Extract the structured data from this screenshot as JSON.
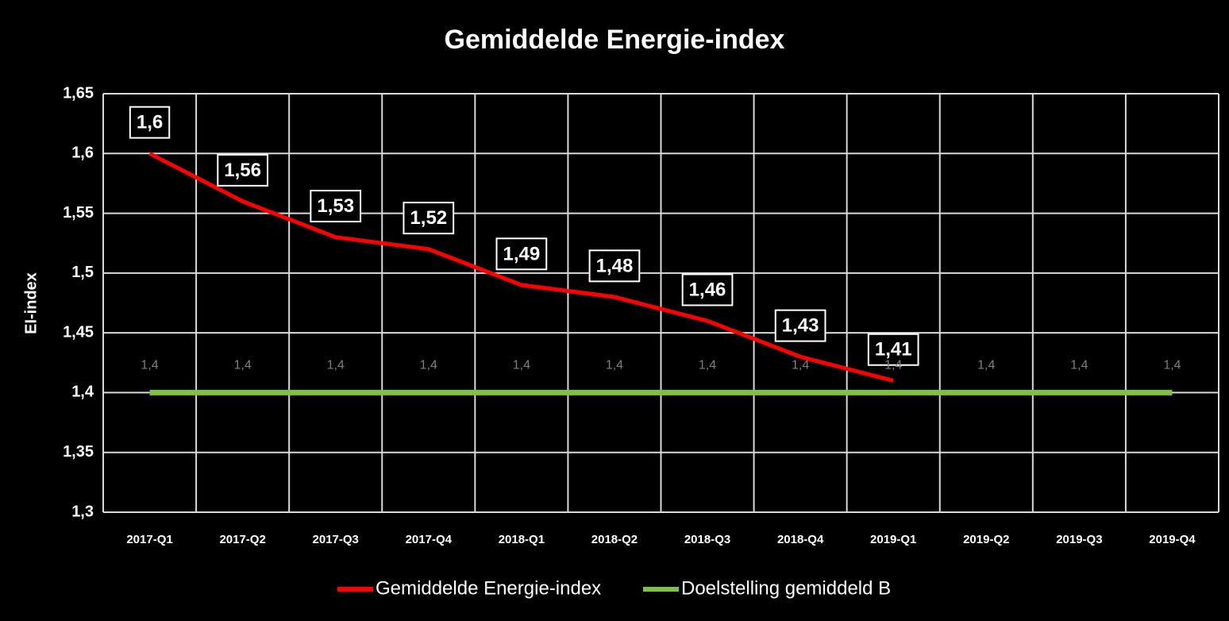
{
  "chart_data": {
    "type": "line",
    "title": "Gemiddelde Energie-index",
    "y_label": "EI-index",
    "categories": [
      "2017-Q1",
      "2017-Q2",
      "2017-Q3",
      "2017-Q4",
      "2018-Q1",
      "2018-Q2",
      "2018-Q3",
      "2018-Q4",
      "2019-Q1",
      "2019-Q2",
      "2019-Q3",
      "2019-Q4"
    ],
    "series": [
      {
        "name": "Gemiddelde Energie-index",
        "color": "#ff0000",
        "values": [
          1.6,
          1.56,
          1.53,
          1.52,
          1.49,
          1.48,
          1.46,
          1.43,
          1.41,
          null,
          null,
          null
        ],
        "value_labels": [
          "1,6",
          "1,56",
          "1,53",
          "1,52",
          "1,49",
          "1,48",
          "1,46",
          "1,43",
          "1,41",
          null,
          null,
          null
        ]
      },
      {
        "name": "Doelstelling gemiddeld B",
        "color": "#7dc242",
        "values": [
          1.4,
          1.4,
          1.4,
          1.4,
          1.4,
          1.4,
          1.4,
          1.4,
          1.4,
          1.4,
          1.4,
          1.4
        ],
        "value_labels": [
          "1,4",
          "1,4",
          "1,4",
          "1,4",
          "1,4",
          "1,4",
          "1,4",
          "1,4",
          "1,4",
          "1,4",
          "1,4",
          "1,4"
        ]
      }
    ],
    "ylim": [
      1.3,
      1.65
    ],
    "yticks": [
      {
        "value": 1.3,
        "label": "1,3"
      },
      {
        "value": 1.35,
        "label": "1,35"
      },
      {
        "value": 1.4,
        "label": "1,4"
      },
      {
        "value": 1.45,
        "label": "1,45"
      },
      {
        "value": 1.5,
        "label": "1,5"
      },
      {
        "value": 1.55,
        "label": "1,55"
      },
      {
        "value": 1.6,
        "label": "1,6"
      },
      {
        "value": 1.65,
        "label": "1,65"
      }
    ],
    "grid": true,
    "legend": "bottom"
  }
}
